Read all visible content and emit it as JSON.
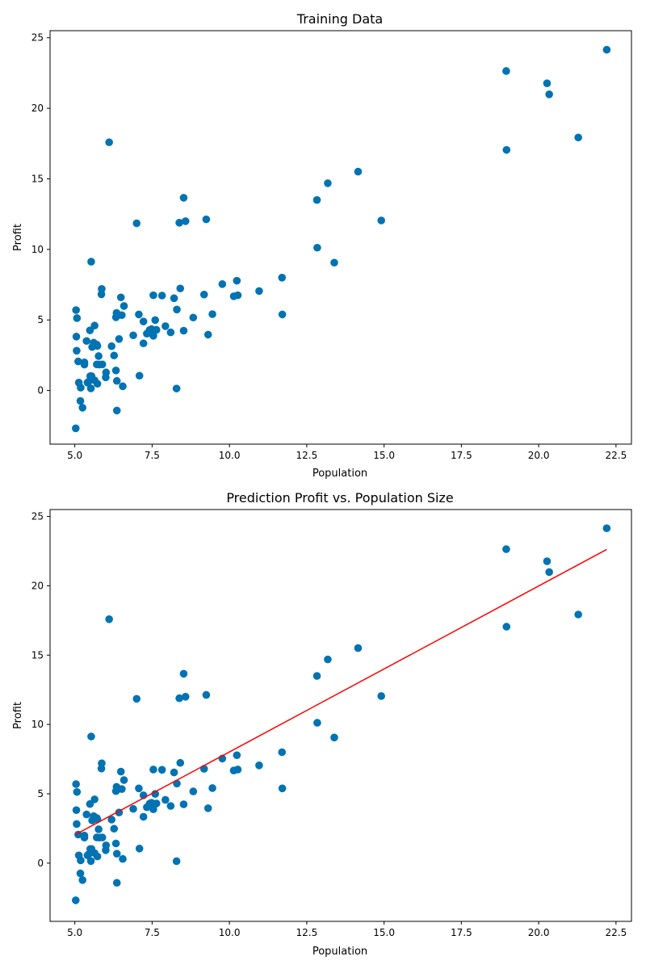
{
  "chart_data": [
    {
      "type": "scatter",
      "title": "Training Data",
      "xlabel": "Population",
      "ylabel": "Profit",
      "xlim": [
        4.2,
        23.0
      ],
      "ylim": [
        -3.8,
        25.5
      ],
      "xticks": [
        5.0,
        7.5,
        10.0,
        12.5,
        15.0,
        17.5,
        20.0,
        22.5
      ],
      "xtick_labels": [
        "5.0",
        "7.5",
        "10.0",
        "12.5",
        "15.0",
        "17.5",
        "20.0",
        "22.5"
      ],
      "yticks": [
        0,
        5,
        10,
        15,
        20,
        25
      ],
      "ytick_labels": [
        "0",
        "5",
        "10",
        "15",
        "20",
        "25"
      ],
      "grid": false,
      "colors": {
        "points": "#0173b2"
      },
      "series": [
        {
          "marker": "circle",
          "x": [
            6.11,
            5.53,
            8.52,
            7.0,
            5.86,
            8.38,
            7.48,
            8.58,
            6.49,
            5.05,
            5.71,
            14.16,
            5.73,
            8.41,
            5.64,
            5.38,
            6.37,
            5.13,
            6.43,
            7.07,
            6.19,
            20.27,
            5.49,
            6.33,
            5.56,
            18.95,
            12.83,
            10.96,
            13.18,
            22.2,
            5.25,
            6.59,
            9.25,
            5.89,
            8.21,
            7.93,
            8.1,
            5.61,
            12.84,
            6.35,
            5.41,
            6.89,
            11.71,
            5.77,
            7.82,
            7.09,
            5.07,
            5.8,
            11.7,
            5.54,
            7.54,
            5.31,
            7.42,
            7.6,
            6.33,
            6.36,
            6.27,
            5.64,
            9.31,
            9.45,
            8.83,
            5.18,
            21.28,
            14.91,
            18.96,
            7.22,
            8.3,
            10.24,
            5.5,
            20.34,
            10.14,
            7.33,
            6.01,
            7.22,
            5.03,
            6.55,
            7.54,
            5.04,
            10.27,
            5.11,
            5.73,
            5.19,
            6.36,
            9.77,
            6.52,
            8.52,
            9.18,
            6.0,
            5.52,
            5.06,
            5.71,
            7.64,
            5.87,
            5.31,
            8.29,
            13.39,
            5.44
          ],
          "y": [
            17.59,
            9.13,
            13.66,
            11.85,
            6.82,
            11.89,
            4.35,
            12.0,
            6.6,
            3.82,
            3.25,
            15.51,
            3.16,
            7.23,
            0.72,
            3.51,
            5.3,
            0.56,
            3.65,
            5.39,
            3.14,
            21.77,
            4.26,
            5.19,
            3.08,
            22.64,
            13.5,
            7.05,
            14.69,
            24.15,
            -1.22,
            5.99,
            12.13,
            1.85,
            6.54,
            4.56,
            4.12,
            3.39,
            10.12,
            5.5,
            0.56,
            3.91,
            5.39,
            2.44,
            6.73,
            1.05,
            5.13,
            1.84,
            8.0,
            1.02,
            6.75,
            1.84,
            4.29,
            4.99,
            1.42,
            -1.42,
            2.48,
            4.6,
            3.96,
            5.41,
            5.17,
            -0.74,
            17.93,
            12.05,
            17.05,
            4.89,
            5.74,
            7.78,
            1.02,
            20.99,
            6.68,
            4.03,
            1.28,
            3.34,
            -2.68,
            0.3,
            3.88,
            5.7,
            6.75,
            2.06,
            0.48,
            0.2,
            0.68,
            7.54,
            5.34,
            4.24,
            6.8,
            0.93,
            0.15,
            2.82,
            1.85,
            4.3,
            7.2,
            1.99,
            0.14,
            9.06,
            0.62
          ]
        }
      ]
    },
    {
      "type": "scatter",
      "title": "Prediction Profit vs. Population Size",
      "xlabel": "Population",
      "ylabel": "Profit",
      "xlim": [
        4.2,
        23.0
      ],
      "ylim": [
        -4.2,
        25.5
      ],
      "xticks": [
        5.0,
        7.5,
        10.0,
        12.5,
        15.0,
        17.5,
        20.0,
        22.5
      ],
      "xtick_labels": [
        "5.0",
        "7.5",
        "10.0",
        "12.5",
        "15.0",
        "17.5",
        "20.0",
        "22.5"
      ],
      "yticks": [
        0,
        5,
        10,
        15,
        20,
        25
      ],
      "ytick_labels": [
        "0",
        "5",
        "10",
        "15",
        "20",
        "25"
      ],
      "grid": false,
      "colors": {
        "points": "#0173b2",
        "fit_line": "#ff0000"
      },
      "series": [
        {
          "marker": "circle",
          "x": [
            6.11,
            5.53,
            8.52,
            7.0,
            5.86,
            8.38,
            7.48,
            8.58,
            6.49,
            5.05,
            5.71,
            14.16,
            5.73,
            8.41,
            5.64,
            5.38,
            6.37,
            5.13,
            6.43,
            7.07,
            6.19,
            20.27,
            5.49,
            6.33,
            5.56,
            18.95,
            12.83,
            10.96,
            13.18,
            22.2,
            5.25,
            6.59,
            9.25,
            5.89,
            8.21,
            7.93,
            8.1,
            5.61,
            12.84,
            6.35,
            5.41,
            6.89,
            11.71,
            5.77,
            7.82,
            7.09,
            5.07,
            5.8,
            11.7,
            5.54,
            7.54,
            5.31,
            7.42,
            7.6,
            6.33,
            6.36,
            6.27,
            5.64,
            9.31,
            9.45,
            8.83,
            5.18,
            21.28,
            14.91,
            18.96,
            7.22,
            8.3,
            10.24,
            5.5,
            20.34,
            10.14,
            7.33,
            6.01,
            7.22,
            5.03,
            6.55,
            7.54,
            5.04,
            10.27,
            5.11,
            5.73,
            5.19,
            6.36,
            9.77,
            6.52,
            8.52,
            9.18,
            6.0,
            5.52,
            5.06,
            5.71,
            7.64,
            5.87,
            5.31,
            8.29,
            13.39,
            5.44
          ],
          "y": [
            17.59,
            9.13,
            13.66,
            11.85,
            6.82,
            11.89,
            4.35,
            12.0,
            6.6,
            3.82,
            3.25,
            15.51,
            3.16,
            7.23,
            0.72,
            3.51,
            5.3,
            0.56,
            3.65,
            5.39,
            3.14,
            21.77,
            4.26,
            5.19,
            3.08,
            22.64,
            13.5,
            7.05,
            14.69,
            24.15,
            -1.22,
            5.99,
            12.13,
            1.85,
            6.54,
            4.56,
            4.12,
            3.39,
            10.12,
            5.5,
            0.56,
            3.91,
            5.39,
            2.44,
            6.73,
            1.05,
            5.13,
            1.84,
            8.0,
            1.02,
            6.75,
            1.84,
            4.29,
            4.99,
            1.42,
            -1.42,
            2.48,
            4.6,
            3.96,
            5.41,
            5.17,
            -0.74,
            17.93,
            12.05,
            17.05,
            4.89,
            5.74,
            7.78,
            1.02,
            20.99,
            6.68,
            4.03,
            1.28,
            3.34,
            -2.68,
            0.3,
            3.88,
            5.7,
            6.75,
            2.06,
            0.48,
            0.2,
            0.68,
            7.54,
            5.34,
            4.24,
            6.8,
            0.93,
            0.15,
            2.82,
            1.85,
            4.3,
            7.2,
            1.99,
            0.14,
            9.06,
            0.62
          ]
        },
        {
          "type": "line",
          "x": [
            5.03,
            22.2
          ],
          "y": [
            2.07,
            22.62
          ]
        }
      ]
    }
  ]
}
